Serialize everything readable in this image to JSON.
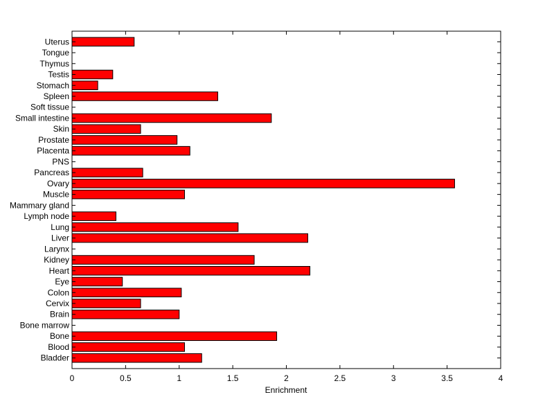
{
  "chart_data": {
    "type": "bar",
    "orientation": "horizontal",
    "title": "",
    "xlabel": "Enrichment",
    "ylabel": "",
    "xlim": [
      0,
      4
    ],
    "xticks": [
      0,
      0.5,
      1,
      1.5,
      2,
      2.5,
      3,
      3.5,
      4
    ],
    "xtick_labels": [
      "0",
      "0.5",
      "1",
      "1.5",
      "2",
      "2.5",
      "3",
      "3.5",
      "4"
    ],
    "grid": false,
    "bar_color": "#ff0000",
    "categories": [
      "Bladder",
      "Blood",
      "Bone",
      "Bone marrow",
      "Brain",
      "Cervix",
      "Colon",
      "Eye",
      "Heart",
      "Kidney",
      "Larynx",
      "Liver",
      "Lung",
      "Lymph node",
      "Mammary gland",
      "Muscle",
      "Ovary",
      "Pancreas",
      "PNS",
      "Placenta",
      "Prostate",
      "Skin",
      "Small intestine",
      "Soft tissue",
      "Spleen",
      "Stomach",
      "Testis",
      "Thymus",
      "Tongue",
      "Uterus"
    ],
    "values": [
      1.21,
      1.05,
      1.91,
      0,
      1.0,
      0.64,
      1.02,
      0.47,
      2.22,
      1.7,
      0,
      2.2,
      1.55,
      0.41,
      0,
      1.05,
      3.57,
      0.66,
      0,
      1.1,
      0.98,
      0.64,
      1.86,
      0,
      1.36,
      0.24,
      0.38,
      0,
      0,
      0.58
    ]
  }
}
